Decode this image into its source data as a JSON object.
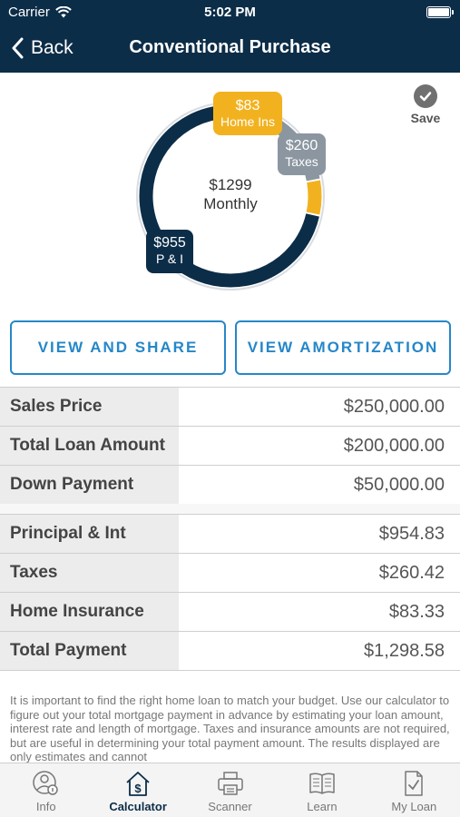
{
  "status_bar": {
    "carrier": "Carrier",
    "time": "5:02 PM"
  },
  "nav": {
    "back_label": "Back",
    "title": "Conventional Purchase"
  },
  "chart_data": {
    "type": "pie",
    "categories": [
      "P & I",
      "Taxes",
      "Home Ins"
    ],
    "values": [
      955,
      260,
      83
    ],
    "center": {
      "amount": "$1299",
      "label": "Monthly"
    },
    "bubbles": {
      "pi": {
        "amount": "$955",
        "label": "P & I"
      },
      "taxes": {
        "amount": "$260",
        "label": "Taxes"
      },
      "home": {
        "amount": "$83",
        "label": "Home Ins"
      }
    },
    "colors": {
      "pi": "#0c2d48",
      "taxes": "#8b96a0",
      "home": "#f2b21f"
    }
  },
  "save_label": "Save",
  "buttons": {
    "view_share": "VIEW AND SHARE",
    "view_amortization": "VIEW AMORTIZATION"
  },
  "loan_rows": [
    {
      "label": "Sales Price",
      "value": "$250,000.00"
    },
    {
      "label": "Total Loan Amount",
      "value": "$200,000.00"
    },
    {
      "label": "Down Payment",
      "value": "$50,000.00"
    }
  ],
  "payment_rows": [
    {
      "label": "Principal & Int",
      "value": "$954.83"
    },
    {
      "label": "Taxes",
      "value": "$260.42"
    },
    {
      "label": "Home Insurance",
      "value": "$83.33"
    },
    {
      "label": "Total Payment",
      "value": "$1,298.58"
    }
  ],
  "disclaimer": "It is important to find the right home loan to match your budget. Use our calculator to figure out your total mortgage payment in advance by estimating your loan amount, interest rate and length of mortgage. Taxes and insurance amounts are not required, but are useful in determining your total payment amount. The results displayed are only estimates and cannot",
  "tabs": [
    {
      "label": "Info",
      "icon": "info-person-icon"
    },
    {
      "label": "Calculator",
      "icon": "calculator-house-icon",
      "active": true
    },
    {
      "label": "Scanner",
      "icon": "printer-icon"
    },
    {
      "label": "Learn",
      "icon": "book-icon"
    },
    {
      "label": "My Loan",
      "icon": "document-check-icon"
    }
  ],
  "accent_colors": {
    "header": "#0c2d48",
    "button": "#2687c8"
  }
}
